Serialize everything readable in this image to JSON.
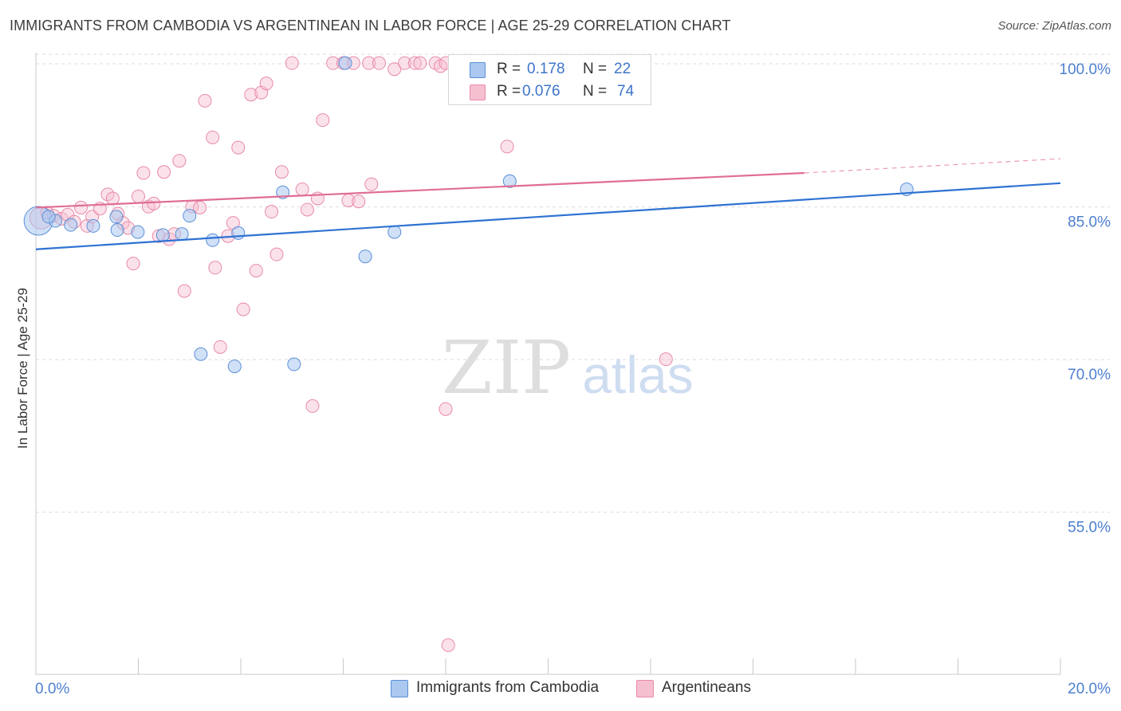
{
  "header": {
    "title": "IMMIGRANTS FROM CAMBODIA VS ARGENTINEAN IN LABOR FORCE | AGE 25-29 CORRELATION CHART",
    "source": "Source: ZipAtlas.com"
  },
  "watermark": {
    "zip": "ZIP",
    "atlas": "atlas"
  },
  "legend": {
    "r_label": "R =",
    "n_label": "N =",
    "series": [
      {
        "r": "0.178",
        "n": "22"
      },
      {
        "r": "0.076",
        "n": "74"
      }
    ]
  },
  "bottom_legend": {
    "items": [
      "Immigrants from Cambodia",
      "Argentineans"
    ]
  },
  "colors": {
    "blue_fill": "#aac8f0",
    "blue_stroke": "#5b8fd6",
    "blue_line": "#2f72d3",
    "pink_fill": "#f6bfd0",
    "pink_stroke": "#e88aa8",
    "pink_line": "#e06d95",
    "tick_label": "#4d7fd0"
  },
  "chart_data": {
    "type": "scatter",
    "title": "IMMIGRANTS FROM CAMBODIA VS ARGENTINEAN IN LABOR FORCE | AGE 25-29 CORRELATION CHART",
    "xlabel": "",
    "ylabel": "In Labor Force | Age 25-29",
    "xlim": [
      0,
      20
    ],
    "ylim": [
      41.5,
      101.5
    ],
    "x_tick_labels": [
      "0.0%",
      "20.0%"
    ],
    "y_ticks": [
      55,
      70,
      85,
      100
    ],
    "y_tick_labels": [
      "55.0%",
      "70.0%",
      "85.0%",
      "100.0%"
    ],
    "series": [
      {
        "name": "Immigrants from Cambodia",
        "R": 0.178,
        "N": 22,
        "points": [
          [
            0.05,
            84.5,
            18
          ],
          [
            0.38,
            84.5,
            8
          ],
          [
            0.68,
            84.1,
            8
          ],
          [
            1.12,
            84.0,
            8
          ],
          [
            1.57,
            84.9,
            8
          ],
          [
            1.99,
            83.4,
            8
          ],
          [
            1.59,
            83.6,
            8
          ],
          [
            2.48,
            83.1,
            8
          ],
          [
            2.85,
            83.2,
            8
          ],
          [
            3.0,
            85.0,
            8
          ],
          [
            3.45,
            82.6,
            8
          ],
          [
            3.95,
            83.3,
            8
          ],
          [
            4.82,
            87.3,
            8
          ],
          [
            6.04,
            100.0,
            8
          ],
          [
            6.43,
            81.0,
            8
          ],
          [
            7.0,
            83.4,
            8
          ],
          [
            9.25,
            88.4,
            8
          ],
          [
            17.0,
            87.6,
            8
          ],
          [
            3.22,
            71.4,
            8
          ],
          [
            3.88,
            70.2,
            8
          ],
          [
            5.04,
            70.4,
            8
          ],
          [
            0.25,
            84.9,
            8
          ]
        ],
        "trend": {
          "x": [
            0,
            20
          ],
          "y": [
            81.7,
            88.2
          ]
        }
      },
      {
        "name": "Argentineans",
        "R": 0.076,
        "N": 74,
        "points": [
          [
            0.1,
            84.8,
            14
          ],
          [
            0.22,
            85.3,
            8
          ],
          [
            0.35,
            85.0,
            8
          ],
          [
            0.5,
            84.7,
            8
          ],
          [
            0.62,
            85.1,
            8
          ],
          [
            0.75,
            84.4,
            8
          ],
          [
            0.88,
            85.8,
            8
          ],
          [
            1.0,
            84.0,
            8
          ],
          [
            1.1,
            84.9,
            8
          ],
          [
            1.25,
            85.7,
            8
          ],
          [
            1.4,
            87.1,
            8
          ],
          [
            1.5,
            86.7,
            8
          ],
          [
            1.6,
            85.2,
            8
          ],
          [
            1.7,
            84.3,
            8
          ],
          [
            1.8,
            83.8,
            8
          ],
          [
            1.9,
            80.3,
            8
          ],
          [
            2.0,
            86.9,
            8
          ],
          [
            2.1,
            89.2,
            8
          ],
          [
            2.2,
            85.9,
            8
          ],
          [
            2.3,
            86.2,
            8
          ],
          [
            2.4,
            83.0,
            8
          ],
          [
            2.5,
            89.3,
            8
          ],
          [
            2.6,
            82.7,
            8
          ],
          [
            2.7,
            83.2,
            8
          ],
          [
            2.8,
            90.4,
            8
          ],
          [
            2.9,
            77.6,
            8
          ],
          [
            3.05,
            85.9,
            8
          ],
          [
            3.2,
            85.8,
            8
          ],
          [
            3.3,
            96.3,
            8
          ],
          [
            3.45,
            92.7,
            8
          ],
          [
            3.5,
            79.9,
            8
          ],
          [
            3.6,
            72.1,
            8
          ],
          [
            3.75,
            83.0,
            8
          ],
          [
            3.85,
            84.3,
            8
          ],
          [
            3.95,
            91.7,
            8
          ],
          [
            4.05,
            75.8,
            8
          ],
          [
            4.2,
            96.9,
            8
          ],
          [
            4.3,
            79.6,
            8
          ],
          [
            4.4,
            97.1,
            8
          ],
          [
            4.5,
            98.0,
            8
          ],
          [
            4.6,
            85.4,
            8
          ],
          [
            4.7,
            81.2,
            8
          ],
          [
            4.8,
            89.3,
            8
          ],
          [
            5.0,
            100.0,
            8
          ],
          [
            5.2,
            87.6,
            8
          ],
          [
            5.3,
            85.6,
            8
          ],
          [
            5.4,
            66.3,
            8
          ],
          [
            5.5,
            86.7,
            8
          ],
          [
            5.6,
            94.4,
            8
          ],
          [
            5.8,
            100.0,
            8
          ],
          [
            6.0,
            100.0,
            8
          ],
          [
            6.1,
            86.5,
            8
          ],
          [
            6.2,
            100.0,
            8
          ],
          [
            6.3,
            86.4,
            8
          ],
          [
            6.5,
            100.0,
            8
          ],
          [
            6.55,
            88.1,
            8
          ],
          [
            6.7,
            100.0,
            8
          ],
          [
            7.0,
            99.4,
            8
          ],
          [
            7.2,
            100.0,
            8
          ],
          [
            7.4,
            100.0,
            8
          ],
          [
            7.5,
            100.0,
            8
          ],
          [
            7.8,
            100.0,
            8
          ],
          [
            7.9,
            99.7,
            8
          ],
          [
            8.0,
            100.0,
            8
          ],
          [
            8.2,
            100.0,
            8
          ],
          [
            8.3,
            99.7,
            8
          ],
          [
            8.4,
            100.0,
            8
          ],
          [
            8.5,
            100.0,
            8
          ],
          [
            8.8,
            100.0,
            8
          ],
          [
            9.1,
            100.0,
            8
          ],
          [
            9.2,
            91.8,
            8
          ],
          [
            8.0,
            66.0,
            8
          ],
          [
            8.05,
            42.8,
            8
          ],
          [
            12.3,
            70.9,
            8
          ]
        ],
        "trend": {
          "x": [
            0,
            15.0
          ],
          "y": [
            85.8,
            89.2
          ]
        },
        "trend_dashed": {
          "x": [
            15.0,
            20
          ],
          "y": [
            89.2,
            90.6
          ]
        }
      }
    ]
  }
}
